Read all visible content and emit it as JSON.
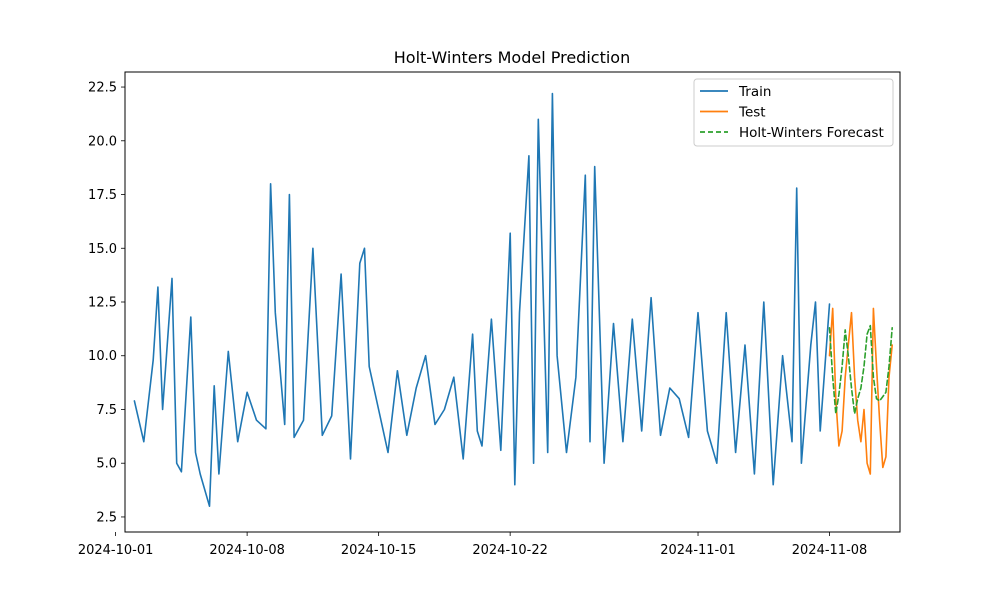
{
  "chart_data": {
    "type": "line",
    "title": "Holt-Winters Model Prediction",
    "xlabel": "",
    "ylabel": "",
    "x_type": "date",
    "xlim": [
      "2024-10-01T12:00",
      "2024-11-11T18:00"
    ],
    "ylim": [
      1.8,
      23.2
    ],
    "x_ticks": [
      "2024-10-01",
      "2024-10-08",
      "2024-10-15",
      "2024-10-22",
      "2024-11-01",
      "2024-11-08"
    ],
    "y_ticks": [
      "2.5",
      "5.0",
      "7.5",
      "10.0",
      "12.5",
      "15.0",
      "17.5",
      "20.0",
      "22.5"
    ],
    "y_tick_values": [
      2.5,
      5.0,
      7.5,
      10.0,
      12.5,
      15.0,
      17.5,
      20.0,
      22.5
    ],
    "grid": false,
    "legend_position": "top-right",
    "series": [
      {
        "name": "Train",
        "color": "#1f77b4",
        "style": "solid",
        "x": [
          "2024-10-02T00:00",
          "2024-10-02T12:00",
          "2024-10-03T00:00",
          "2024-10-03T06:00",
          "2024-10-03T12:00",
          "2024-10-04T00:00",
          "2024-10-04T06:00",
          "2024-10-04T12:00",
          "2024-10-05T00:00",
          "2024-10-05T06:00",
          "2024-10-05T12:00",
          "2024-10-06T00:00",
          "2024-10-06T06:00",
          "2024-10-06T12:00",
          "2024-10-07T00:00",
          "2024-10-07T12:00",
          "2024-10-08T00:00",
          "2024-10-08T12:00",
          "2024-10-09T00:00",
          "2024-10-09T06:00",
          "2024-10-09T12:00",
          "2024-10-10T00:00",
          "2024-10-10T06:00",
          "2024-10-10T12:00",
          "2024-10-11T00:00",
          "2024-10-11T12:00",
          "2024-10-12T00:00",
          "2024-10-12T12:00",
          "2024-10-13T00:00",
          "2024-10-13T12:00",
          "2024-10-14T00:00",
          "2024-10-14T06:00",
          "2024-10-14T12:00",
          "2024-10-15T00:00",
          "2024-10-15T12:00",
          "2024-10-16T00:00",
          "2024-10-16T12:00",
          "2024-10-17T00:00",
          "2024-10-17T12:00",
          "2024-10-18T00:00",
          "2024-10-18T12:00",
          "2024-10-19T00:00",
          "2024-10-19T12:00",
          "2024-10-20T00:00",
          "2024-10-20T06:00",
          "2024-10-20T12:00",
          "2024-10-21T00:00",
          "2024-10-21T12:00",
          "2024-10-22T00:00",
          "2024-10-22T06:00",
          "2024-10-22T12:00",
          "2024-10-23T00:00",
          "2024-10-23T06:00",
          "2024-10-23T12:00",
          "2024-10-24T00:00",
          "2024-10-24T06:00",
          "2024-10-24T12:00",
          "2024-10-25T00:00",
          "2024-10-25T12:00",
          "2024-10-26T00:00",
          "2024-10-26T06:00",
          "2024-10-26T12:00",
          "2024-10-27T00:00",
          "2024-10-27T12:00",
          "2024-10-28T00:00",
          "2024-10-28T12:00",
          "2024-10-29T00:00",
          "2024-10-29T12:00",
          "2024-10-30T00:00",
          "2024-10-30T12:00",
          "2024-10-31T00:00",
          "2024-10-31T12:00",
          "2024-11-01T00:00",
          "2024-11-01T12:00",
          "2024-11-02T00:00",
          "2024-11-02T12:00",
          "2024-11-03T00:00",
          "2024-11-03T12:00",
          "2024-11-04T00:00",
          "2024-11-04T12:00",
          "2024-11-05T00:00",
          "2024-11-05T12:00",
          "2024-11-06T00:00",
          "2024-11-06T06:00",
          "2024-11-06T12:00",
          "2024-11-07T00:00",
          "2024-11-07T06:00",
          "2024-11-07T12:00",
          "2024-11-08T00:00"
        ],
        "values": [
          7.9,
          6.0,
          9.8,
          13.2,
          7.5,
          13.6,
          5.0,
          4.6,
          11.8,
          5.5,
          4.5,
          3.0,
          8.6,
          4.5,
          10.2,
          6.0,
          8.3,
          7.0,
          6.6,
          18.0,
          12.0,
          6.8,
          17.5,
          6.2,
          7.0,
          15.0,
          6.3,
          7.2,
          13.8,
          5.2,
          14.3,
          15.0,
          9.5,
          7.5,
          5.5,
          9.3,
          6.3,
          8.5,
          10.0,
          6.8,
          7.5,
          9.0,
          5.2,
          11.0,
          6.5,
          5.8,
          11.7,
          5.6,
          15.7,
          4.0,
          12.0,
          19.3,
          5.0,
          21.0,
          5.5,
          22.2,
          10.0,
          5.5,
          9.0,
          18.4,
          6.0,
          18.8,
          5.0,
          11.5,
          6.0,
          11.7,
          6.5,
          12.7,
          6.3,
          8.5,
          8.0,
          6.2,
          12.0,
          6.5,
          5.0,
          12.0,
          5.5,
          10.5,
          4.5,
          12.5,
          4.0,
          10.0,
          6.0,
          17.8,
          5.0,
          10.5,
          12.5,
          6.5,
          12.4
        ]
      },
      {
        "name": "Test",
        "color": "#ff7f0e",
        "style": "solid",
        "x": [
          "2024-11-08T00:00",
          "2024-11-08T04:00",
          "2024-11-08T08:00",
          "2024-11-08T12:00",
          "2024-11-08T16:00",
          "2024-11-08T20:00",
          "2024-11-09T00:00",
          "2024-11-09T04:00",
          "2024-11-09T08:00",
          "2024-11-09T12:00",
          "2024-11-09T16:00",
          "2024-11-09T20:00",
          "2024-11-10T00:00",
          "2024-11-10T04:00",
          "2024-11-10T08:00",
          "2024-11-10T12:00",
          "2024-11-10T16:00",
          "2024-11-10T20:00",
          "2024-11-11T00:00",
          "2024-11-11T04:00",
          "2024-11-11T08:00"
        ],
        "values": [
          10.0,
          12.2,
          8.0,
          5.8,
          6.5,
          9.0,
          10.5,
          12.0,
          9.0,
          7.0,
          6.0,
          7.5,
          5.0,
          4.5,
          12.2,
          9.5,
          7.0,
          4.8,
          5.3,
          9.0,
          10.5
        ]
      },
      {
        "name": "Holt-Winters Forecast",
        "color": "#2ca02c",
        "style": "dashed",
        "x": [
          "2024-11-08T00:00",
          "2024-11-08T04:00",
          "2024-11-08T08:00",
          "2024-11-08T12:00",
          "2024-11-08T16:00",
          "2024-11-08T20:00",
          "2024-11-09T00:00",
          "2024-11-09T04:00",
          "2024-11-09T08:00",
          "2024-11-09T12:00",
          "2024-11-09T16:00",
          "2024-11-09T20:00",
          "2024-11-10T00:00",
          "2024-11-10T04:00",
          "2024-11-10T08:00",
          "2024-11-10T12:00",
          "2024-11-10T16:00",
          "2024-11-10T20:00",
          "2024-11-11T00:00",
          "2024-11-11T04:00",
          "2024-11-11T08:00"
        ],
        "values": [
          11.3,
          9.0,
          7.3,
          8.2,
          9.5,
          11.2,
          10.0,
          8.5,
          7.3,
          8.0,
          8.5,
          9.5,
          11.0,
          11.4,
          9.0,
          8.0,
          7.9,
          8.1,
          8.3,
          9.5,
          11.3
        ]
      }
    ]
  }
}
